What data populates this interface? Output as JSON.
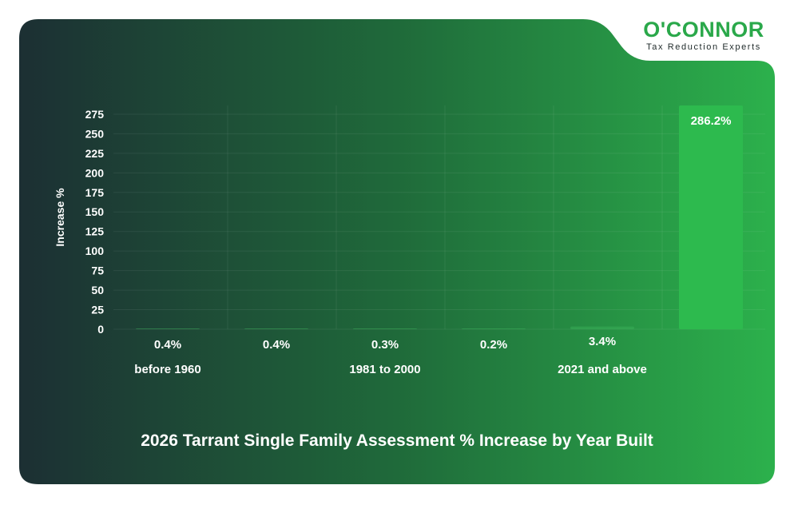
{
  "brand": {
    "name": "O'CONNOR",
    "tagline": "Tax Reduction Experts"
  },
  "colors": {
    "bg_dark": "#1c2f33",
    "bg_light": "#2cb14c",
    "bar": "#2dba4e",
    "text": "#ffffff",
    "brand_green": "#2aa84a"
  },
  "chart_data": {
    "type": "bar",
    "title": "2026 Tarrant Single Family Assessment % Increase by Year Built",
    "ylabel": "Increase %",
    "xlabel": "",
    "ylim": [
      0,
      286.2
    ],
    "yticks": [
      0,
      25,
      50,
      75,
      100,
      125,
      150,
      175,
      200,
      225,
      250,
      275
    ],
    "categories": [
      "before 1960",
      "",
      "1981 to 2000",
      "",
      "2021 and above",
      ""
    ],
    "values": [
      0.4,
      0.4,
      0.3,
      0.2,
      3.4,
      286.2
    ],
    "data_labels": [
      "0.4%",
      "0.4%",
      "0.3%",
      "0.2%",
      "3.4%",
      "286.2%"
    ],
    "grid": true,
    "legend": "none"
  }
}
